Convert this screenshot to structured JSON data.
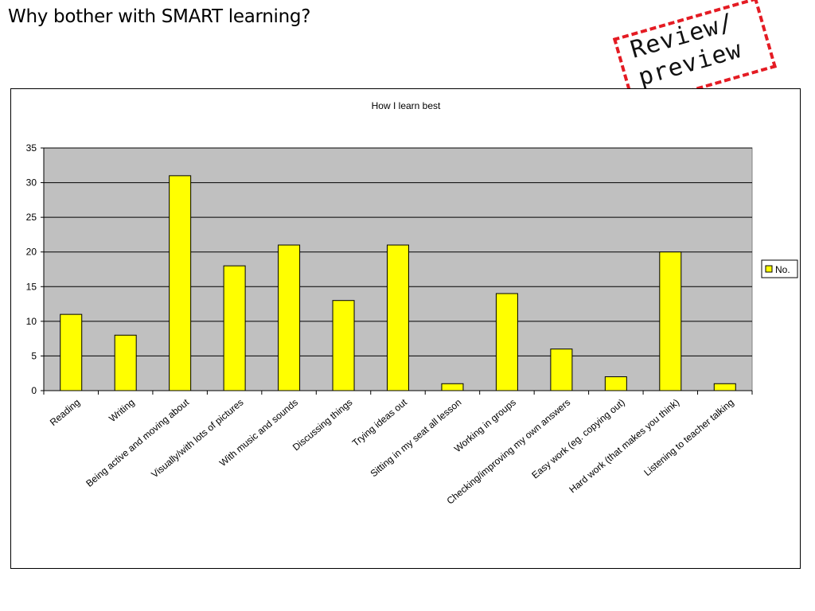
{
  "slide": {
    "title": "Why bother with SMART learning?",
    "stamp_text": "Review/\npreview",
    "stamp_color": "#e41b23"
  },
  "chart_data": {
    "type": "bar",
    "title": "How I learn best",
    "categories": [
      "Reading",
      "Writing",
      "Being active and moving about",
      "Visually/with lots of pictures",
      "With music and sounds",
      "Discussing things",
      "Trying ideas out",
      "Sitting in my seat all lesson",
      "Working in groups",
      "Checking/improving my own answers",
      "Easy work (eg. copying out)",
      "Hard work (that makes you think)",
      "Listening to teacher talking"
    ],
    "series": [
      {
        "name": "No.",
        "values": [
          11,
          8,
          31,
          18,
          21,
          13,
          21,
          1,
          14,
          6,
          2,
          20,
          1
        ],
        "color": "#ffff00"
      }
    ],
    "ylim": [
      0,
      35
    ],
    "yticks": [
      "0",
      "5",
      "10",
      "15",
      "20",
      "25",
      "30",
      "35"
    ],
    "grid": true,
    "plot_background": "#c0c0c0",
    "legend": "right"
  }
}
